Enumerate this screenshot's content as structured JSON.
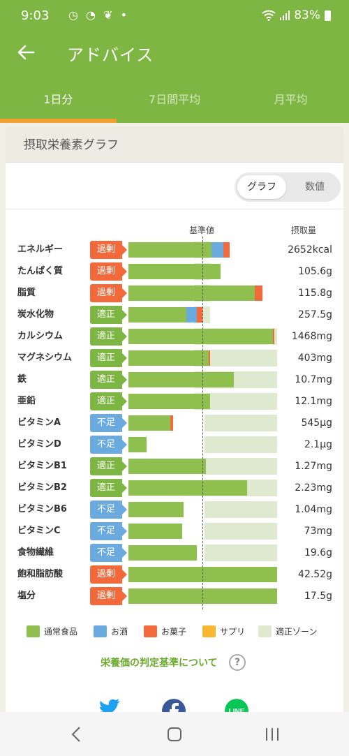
{
  "status_bar": {
    "time": "9:03",
    "battery": "83%"
  },
  "app_bar": {
    "title": "アドバイス"
  },
  "tabs": [
    {
      "label": "1日分",
      "active": true
    },
    {
      "label": "7日間平均",
      "active": false
    },
    {
      "label": "月平均",
      "active": false
    }
  ],
  "card": {
    "title": "摂取栄養素グラフ"
  },
  "view_toggle": {
    "graph": "グラフ",
    "numeric": "数値",
    "selected": "グラフ"
  },
  "columns": {
    "reference": "基準値",
    "intake": "摂取量"
  },
  "status_colors": {
    "過剰": "#f26a3c",
    "適正": "#7db642",
    "不足": "#6aaadf"
  },
  "legend_colors": {
    "通常食品": "#8fbf4f",
    "お酒": "#6aaadf",
    "お菓子": "#f26a3c",
    "サプリ": "#f7b731",
    "適正ゾーン": "#dfe9cf"
  },
  "nutrients": [
    {
      "name": "エネルギー",
      "status": "過剰",
      "value": "2652kcal",
      "zone": [
        0.44,
        0.55
      ],
      "segments": [
        [
          "通常食品",
          0.56
        ],
        [
          "お酒",
          0.08
        ],
        [
          "お菓子",
          0.04
        ]
      ]
    },
    {
      "name": "たんぱく質",
      "status": "過剰",
      "value": "105.6g",
      "zone": [
        0.44,
        0.55
      ],
      "segments": [
        [
          "通常食品",
          0.62
        ]
      ]
    },
    {
      "name": "脂質",
      "status": "過剰",
      "value": "115.8g",
      "zone": [
        0.44,
        0.55
      ],
      "segments": [
        [
          "通常食品",
          0.85
        ],
        [
          "お菓子",
          0.05
        ]
      ]
    },
    {
      "name": "炭水化物",
      "status": "適正",
      "value": "257.5g",
      "zone": [
        0.44,
        0.55
      ],
      "segments": [
        [
          "通常食品",
          0.39
        ],
        [
          "お酒",
          0.07
        ],
        [
          "お菓子",
          0.04
        ]
      ]
    },
    {
      "name": "カルシウム",
      "status": "適正",
      "value": "1468mg",
      "zone": [
        0.44,
        1.0
      ],
      "segments": [
        [
          "通常食品",
          0.97
        ],
        [
          "お菓子",
          0.005
        ]
      ]
    },
    {
      "name": "マグネシウム",
      "status": "適正",
      "value": "403mg",
      "zone": [
        0.44,
        1.0
      ],
      "segments": [
        [
          "通常食品",
          0.54
        ],
        [
          "お菓子",
          0.005
        ]
      ]
    },
    {
      "name": "鉄",
      "status": "適正",
      "value": "10.7mg",
      "zone": [
        0.44,
        1.0
      ],
      "segments": [
        [
          "通常食品",
          0.71
        ]
      ]
    },
    {
      "name": "亜鉛",
      "status": "適正",
      "value": "12.1mg",
      "zone": [
        0.44,
        1.0
      ],
      "segments": [
        [
          "通常食品",
          0.55
        ]
      ]
    },
    {
      "name": "ビタミンA",
      "status": "不足",
      "value": "545μg",
      "zone": [
        0.51,
        1.0
      ],
      "segments": [
        [
          "通常食品",
          0.28
        ],
        [
          "お菓子",
          0.02
        ]
      ]
    },
    {
      "name": "ビタミンD",
      "status": "不足",
      "value": "2.1μg",
      "zone": [
        0.51,
        1.0
      ],
      "segments": [
        [
          "通常食品",
          0.12
        ]
      ]
    },
    {
      "name": "ビタミンB1",
      "status": "適正",
      "value": "1.27mg",
      "zone": [
        0.51,
        1.0
      ],
      "segments": [
        [
          "通常食品",
          0.52
        ]
      ]
    },
    {
      "name": "ビタミンB2",
      "status": "適正",
      "value": "2.23mg",
      "zone": [
        0.51,
        1.0
      ],
      "segments": [
        [
          "通常食品",
          0.8
        ]
      ]
    },
    {
      "name": "ビタミンB6",
      "status": "不足",
      "value": "1.04mg",
      "zone": [
        0.51,
        1.0
      ],
      "segments": [
        [
          "通常食品",
          0.37
        ]
      ]
    },
    {
      "name": "ビタミンC",
      "status": "不足",
      "value": "73mg",
      "zone": [
        0.51,
        1.0
      ],
      "segments": [
        [
          "通常食品",
          0.36
        ]
      ]
    },
    {
      "name": "食物繊維",
      "status": "不足",
      "value": "19.6g",
      "zone": [
        0.51,
        1.0
      ],
      "segments": [
        [
          "通常食品",
          0.46
        ]
      ]
    },
    {
      "name": "飽和脂肪酸",
      "status": "過剰",
      "value": "42.52g",
      "zone": [
        0.0,
        0.0
      ],
      "segments": [
        [
          "通常食品",
          1.0
        ]
      ]
    },
    {
      "name": "塩分",
      "status": "過剰",
      "value": "17.5g",
      "zone": [
        0.0,
        0.0
      ],
      "segments": [
        [
          "通常食品",
          1.0
        ]
      ]
    }
  ],
  "legend": [
    "通常食品",
    "お酒",
    "お菓子",
    "サプリ",
    "適正ゾーン"
  ],
  "criteria_link": "栄養価の判定基準について",
  "help_icon": "?",
  "share": [
    {
      "icon": "twitter-icon",
      "color": "#1da1f2"
    },
    {
      "icon": "facebook-icon",
      "color": "#3b5998"
    },
    {
      "icon": "line-icon",
      "color": "#06c755",
      "label": "LINE"
    }
  ]
}
